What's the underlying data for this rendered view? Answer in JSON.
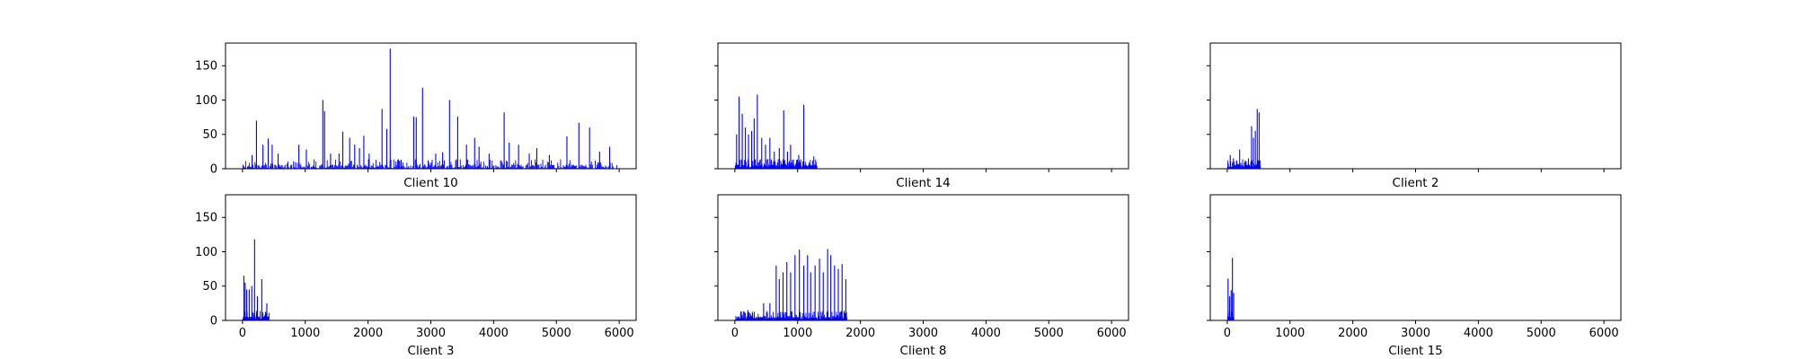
{
  "chart_data": {
    "type": "bar",
    "layout": "2x3 small multiples",
    "shared_y": true,
    "shared_x": true,
    "xlim": [
      -270,
      6270
    ],
    "ylim": [
      0,
      183
    ],
    "xticks": [
      0,
      1000,
      2000,
      3000,
      4000,
      5000,
      6000
    ],
    "xtick_labels": [
      "0",
      "1000",
      "2000",
      "3000",
      "4000",
      "5000",
      "6000"
    ],
    "yticks": [
      0,
      50,
      100,
      150
    ],
    "ytick_labels": [
      "0",
      "50",
      "100",
      "150"
    ],
    "bar_color": "#0000ff",
    "grid": false,
    "panels": [
      {
        "xlabel": "Client 10",
        "x_range": [
          0,
          5970
        ],
        "peaks": [
          [
            145,
            20
          ],
          [
            215,
            70
          ],
          [
            318,
            35
          ],
          [
            402,
            44
          ],
          [
            465,
            35
          ],
          [
            560,
            22
          ],
          [
            890,
            35
          ],
          [
            1010,
            28
          ],
          [
            1272,
            100
          ],
          [
            1300,
            84
          ],
          [
            1395,
            22
          ],
          [
            1530,
            22
          ],
          [
            1590,
            54
          ],
          [
            1700,
            45
          ],
          [
            1780,
            35
          ],
          [
            1855,
            30
          ],
          [
            1925,
            48
          ],
          [
            2010,
            22
          ],
          [
            2215,
            87
          ],
          [
            2290,
            58
          ],
          [
            2345,
            175
          ],
          [
            2515,
            12
          ],
          [
            2720,
            76
          ],
          [
            2760,
            75
          ],
          [
            2860,
            118
          ],
          [
            2950,
            12
          ],
          [
            3070,
            22
          ],
          [
            3180,
            24
          ],
          [
            3290,
            100
          ],
          [
            3420,
            76
          ],
          [
            3560,
            35
          ],
          [
            3690,
            45
          ],
          [
            3760,
            32
          ],
          [
            3920,
            22
          ],
          [
            4160,
            82
          ],
          [
            4240,
            38
          ],
          [
            4390,
            35
          ],
          [
            4560,
            22
          ],
          [
            4680,
            30
          ],
          [
            4880,
            20
          ],
          [
            5160,
            47
          ],
          [
            5350,
            67
          ],
          [
            5520,
            60
          ],
          [
            5680,
            25
          ],
          [
            5840,
            32
          ]
        ]
      },
      {
        "xlabel": "Client 14",
        "x_range": [
          0,
          1300
        ],
        "peaks": [
          [
            20,
            50
          ],
          [
            60,
            105
          ],
          [
            110,
            80
          ],
          [
            160,
            60
          ],
          [
            210,
            50
          ],
          [
            260,
            55
          ],
          [
            300,
            73
          ],
          [
            350,
            108
          ],
          [
            420,
            45
          ],
          [
            480,
            35
          ],
          [
            550,
            45
          ],
          [
            620,
            25
          ],
          [
            700,
            30
          ],
          [
            770,
            85
          ],
          [
            830,
            25
          ],
          [
            880,
            35
          ],
          [
            1010,
            20
          ],
          [
            1090,
            93
          ],
          [
            1250,
            18
          ]
        ]
      },
      {
        "xlabel": "Client 2",
        "x_range": [
          0,
          520
        ],
        "peaks": [
          [
            40,
            20
          ],
          [
            90,
            15
          ],
          [
            190,
            28
          ],
          [
            280,
            12
          ],
          [
            330,
            15
          ],
          [
            380,
            62
          ],
          [
            410,
            45
          ],
          [
            440,
            55
          ],
          [
            470,
            87
          ],
          [
            500,
            82
          ]
        ]
      },
      {
        "xlabel": "Client 3",
        "x_range": [
          0,
          420
        ],
        "peaks": [
          [
            15,
            65
          ],
          [
            35,
            55
          ],
          [
            60,
            45
          ],
          [
            100,
            45
          ],
          [
            140,
            50
          ],
          [
            185,
            118
          ],
          [
            230,
            35
          ],
          [
            300,
            60
          ],
          [
            380,
            25
          ]
        ]
      },
      {
        "xlabel": "Client 8",
        "x_range": [
          0,
          1780
        ],
        "peaks": [
          [
            10,
            5
          ],
          [
            200,
            15
          ],
          [
            300,
            10
          ],
          [
            450,
            25
          ],
          [
            550,
            25
          ],
          [
            650,
            80
          ],
          [
            700,
            60
          ],
          [
            760,
            70
          ],
          [
            820,
            85
          ],
          [
            880,
            70
          ],
          [
            950,
            95
          ],
          [
            1020,
            103
          ],
          [
            1090,
            80
          ],
          [
            1150,
            95
          ],
          [
            1200,
            70
          ],
          [
            1270,
            80
          ],
          [
            1340,
            90
          ],
          [
            1400,
            70
          ],
          [
            1470,
            104
          ],
          [
            1520,
            95
          ],
          [
            1580,
            80
          ],
          [
            1640,
            75
          ],
          [
            1700,
            82
          ],
          [
            1760,
            60
          ]
        ]
      },
      {
        "xlabel": "Client 15",
        "x_range": [
          0,
          100
        ],
        "peaks": [
          [
            5,
            61
          ],
          [
            30,
            35
          ],
          [
            55,
            44
          ],
          [
            75,
            91
          ],
          [
            95,
            40
          ]
        ]
      }
    ]
  }
}
